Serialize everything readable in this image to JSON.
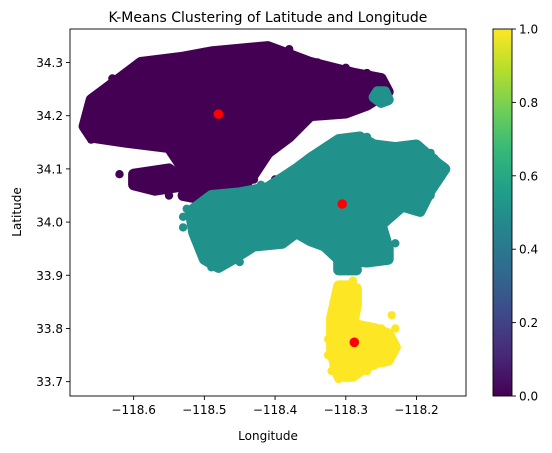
{
  "chart_data": {
    "type": "scatter",
    "title": "K-Means Clustering of Latitude and Longitude",
    "xlabel": "Longitude",
    "ylabel": "Latitude",
    "xlim": [
      -118.69,
      -118.13
    ],
    "ylim": [
      33.673,
      34.363
    ],
    "xticks": [
      -118.6,
      -118.5,
      -118.4,
      -118.3,
      -118.2
    ],
    "xtick_labels": [
      "−118.6",
      "−118.5",
      "−118.4",
      "−118.3",
      "−118.2"
    ],
    "yticks": [
      33.7,
      33.8,
      33.9,
      34.0,
      34.1,
      34.2,
      34.3
    ],
    "ytick_labels": [
      "33.7",
      "33.8",
      "33.9",
      "34.0",
      "34.1",
      "34.2",
      "34.3"
    ],
    "grid": false,
    "colormap": "viridis",
    "colorbar": {
      "range": [
        0.0,
        1.0
      ],
      "ticks": [
        0.0,
        0.2,
        0.4,
        0.6,
        0.8,
        1.0
      ],
      "tick_labels": [
        "0.0",
        "0.2",
        "0.4",
        "0.6",
        "0.8",
        "1.0"
      ],
      "stops": [
        "#440154",
        "#482878",
        "#3e4989",
        "#31688e",
        "#26828e",
        "#1f9e89",
        "#35b779",
        "#6ece58",
        "#b5de2b",
        "#fde725"
      ]
    },
    "clusters": [
      {
        "label": 0,
        "color": "#440154",
        "regions": [
          [
            [
              -118.67,
              34.18
            ],
            [
              -118.66,
              34.23
            ],
            [
              -118.62,
              34.27
            ],
            [
              -118.59,
              34.3
            ],
            [
              -118.53,
              34.31
            ],
            [
              -118.49,
              34.32
            ],
            [
              -118.41,
              34.33
            ],
            [
              -118.38,
              34.315
            ],
            [
              -118.35,
              34.3
            ],
            [
              -118.32,
              34.29
            ],
            [
              -118.29,
              34.28
            ],
            [
              -118.25,
              34.27
            ],
            [
              -118.24,
              34.245
            ],
            [
              -118.27,
              34.22
            ],
            [
              -118.3,
              34.205
            ],
            [
              -118.35,
              34.2
            ],
            [
              -118.38,
              34.16
            ],
            [
              -118.41,
              34.13
            ],
            [
              -118.43,
              34.09
            ],
            [
              -118.45,
              34.06
            ],
            [
              -118.48,
              34.05
            ],
            [
              -118.51,
              34.045
            ],
            [
              -118.53,
              34.05
            ],
            [
              -118.52,
              34.08
            ],
            [
              -118.55,
              34.14
            ],
            [
              -118.61,
              34.15
            ],
            [
              -118.66,
              34.16
            ]
          ],
          [
            [
              -118.6,
              34.09
            ],
            [
              -118.55,
              34.1
            ],
            [
              -118.52,
              34.07
            ],
            [
              -118.57,
              34.06
            ],
            [
              -118.6,
              34.07
            ]
          ]
        ],
        "points": [
          [
            -118.41,
            34.33
          ],
          [
            -118.38,
            34.325
          ],
          [
            -118.34,
            34.3
          ],
          [
            -118.3,
            34.29
          ],
          [
            -118.27,
            34.28
          ],
          [
            -118.36,
            34.22
          ],
          [
            -118.38,
            34.18
          ],
          [
            -118.42,
            34.11
          ],
          [
            -118.45,
            34.065
          ],
          [
            -118.49,
            34.05
          ],
          [
            -118.52,
            34.045
          ],
          [
            -118.55,
            34.05
          ],
          [
            -118.57,
            34.065
          ],
          [
            -118.6,
            34.07
          ],
          [
            -118.62,
            34.09
          ],
          [
            -118.66,
            34.155
          ],
          [
            -118.67,
            34.185
          ],
          [
            -118.66,
            34.21
          ],
          [
            -118.63,
            34.27
          ],
          [
            -118.57,
            34.3
          ],
          [
            -118.5,
            34.32
          ],
          [
            -118.45,
            34.31
          ],
          [
            -118.25,
            34.265
          ],
          [
            -118.24,
            34.24
          ],
          [
            -118.4,
            34.08
          ],
          [
            -118.43,
            34.08
          ]
        ]
      },
      {
        "label": 1,
        "color": "#21918c",
        "regions": [
          [
            [
              -118.37,
              34.1
            ],
            [
              -118.35,
              34.12
            ],
            [
              -118.31,
              34.155
            ],
            [
              -118.28,
              34.16
            ],
            [
              -118.26,
              34.145
            ],
            [
              -118.23,
              34.14
            ],
            [
              -118.2,
              34.145
            ],
            [
              -118.17,
              34.11
            ],
            [
              -118.16,
              34.1
            ],
            [
              -118.18,
              34.06
            ],
            [
              -118.195,
              34.02
            ],
            [
              -118.22,
              34.03
            ],
            [
              -118.25,
              33.995
            ],
            [
              -118.24,
              33.95
            ],
            [
              -118.24,
              33.93
            ],
            [
              -118.27,
              33.925
            ],
            [
              -118.31,
              33.93
            ],
            [
              -118.33,
              33.955
            ],
            [
              -118.35,
              33.965
            ],
            [
              -118.37,
              33.98
            ],
            [
              -118.39,
              33.96
            ],
            [
              -118.43,
              33.955
            ],
            [
              -118.46,
              33.93
            ],
            [
              -118.48,
              33.915
            ],
            [
              -118.5,
              33.93
            ],
            [
              -118.515,
              33.98
            ],
            [
              -118.52,
              34.02
            ],
            [
              -118.49,
              34.05
            ],
            [
              -118.45,
              34.055
            ],
            [
              -118.41,
              34.065
            ]
          ],
          [
            [
              -118.255,
              34.245
            ],
            [
              -118.245,
              34.245
            ],
            [
              -118.24,
              34.23
            ],
            [
              -118.25,
              34.225
            ],
            [
              -118.26,
              34.235
            ]
          ],
          [
            [
              -118.31,
              33.945
            ],
            [
              -118.29,
              33.945
            ],
            [
              -118.285,
              33.91
            ],
            [
              -118.31,
              33.91
            ]
          ]
        ],
        "points": [
          [
            -118.525,
            34.025
          ],
          [
            -118.53,
            34.01
          ],
          [
            -118.53,
            33.99
          ],
          [
            -118.49,
            33.915
          ],
          [
            -118.47,
            33.92
          ],
          [
            -118.45,
            33.925
          ],
          [
            -118.43,
            33.955
          ],
          [
            -118.41,
            33.965
          ],
          [
            -118.39,
            33.96
          ],
          [
            -118.36,
            33.97
          ],
          [
            -118.35,
            33.97
          ],
          [
            -118.34,
            33.96
          ],
          [
            -118.31,
            33.93
          ],
          [
            -118.29,
            33.93
          ],
          [
            -118.26,
            33.93
          ],
          [
            -118.24,
            33.95
          ],
          [
            -118.23,
            33.96
          ],
          [
            -118.2,
            34.02
          ],
          [
            -118.18,
            34.05
          ],
          [
            -118.16,
            34.1
          ],
          [
            -118.165,
            34.085
          ],
          [
            -118.175,
            34.12
          ],
          [
            -118.18,
            34.13
          ],
          [
            -118.2,
            34.14
          ],
          [
            -118.23,
            34.14
          ],
          [
            -118.25,
            34.145
          ],
          [
            -118.27,
            34.16
          ],
          [
            -118.3,
            34.155
          ],
          [
            -118.34,
            34.12
          ],
          [
            -118.36,
            34.11
          ],
          [
            -118.38,
            34.08
          ],
          [
            -118.245,
            34.24
          ],
          [
            -118.42,
            34.07
          ],
          [
            -118.44,
            34.06
          ]
        ]
      },
      {
        "label": 2,
        "color": "#fde725",
        "regions": [
          [
            [
              -118.295,
              33.88
            ],
            [
              -118.285,
              33.875
            ],
            [
              -118.285,
              33.845
            ],
            [
              -118.29,
              33.81
            ],
            [
              -118.28,
              33.805
            ],
            [
              -118.26,
              33.8
            ],
            [
              -118.24,
              33.79
            ],
            [
              -118.23,
              33.765
            ],
            [
              -118.24,
              33.74
            ],
            [
              -118.26,
              33.735
            ],
            [
              -118.28,
              33.72
            ],
            [
              -118.29,
              33.71
            ],
            [
              -118.31,
              33.71
            ],
            [
              -118.315,
              33.73
            ],
            [
              -118.32,
              33.76
            ],
            [
              -118.32,
              33.79
            ],
            [
              -118.32,
              33.82
            ],
            [
              -118.315,
              33.85
            ],
            [
              -118.31,
              33.88
            ]
          ]
        ],
        "points": [
          [
            -118.29,
            33.89
          ],
          [
            -118.285,
            33.87
          ],
          [
            -118.31,
            33.86
          ],
          [
            -118.32,
            33.83
          ],
          [
            -118.235,
            33.825
          ],
          [
            -118.23,
            33.8
          ],
          [
            -118.235,
            33.775
          ],
          [
            -118.24,
            33.74
          ],
          [
            -118.26,
            33.73
          ],
          [
            -118.27,
            33.72
          ],
          [
            -118.29,
            33.71
          ],
          [
            -118.31,
            33.705
          ],
          [
            -118.32,
            33.72
          ],
          [
            -118.325,
            33.75
          ],
          [
            -118.325,
            33.78
          ],
          [
            -118.24,
            33.79
          ],
          [
            -118.25,
            33.8
          ],
          [
            -118.29,
            33.835
          ]
        ]
      }
    ],
    "centroids": {
      "color": "#ff0000",
      "points": [
        [
          -118.48,
          34.203
        ],
        [
          -118.305,
          34.034
        ],
        [
          -118.288,
          33.774
        ]
      ]
    }
  }
}
